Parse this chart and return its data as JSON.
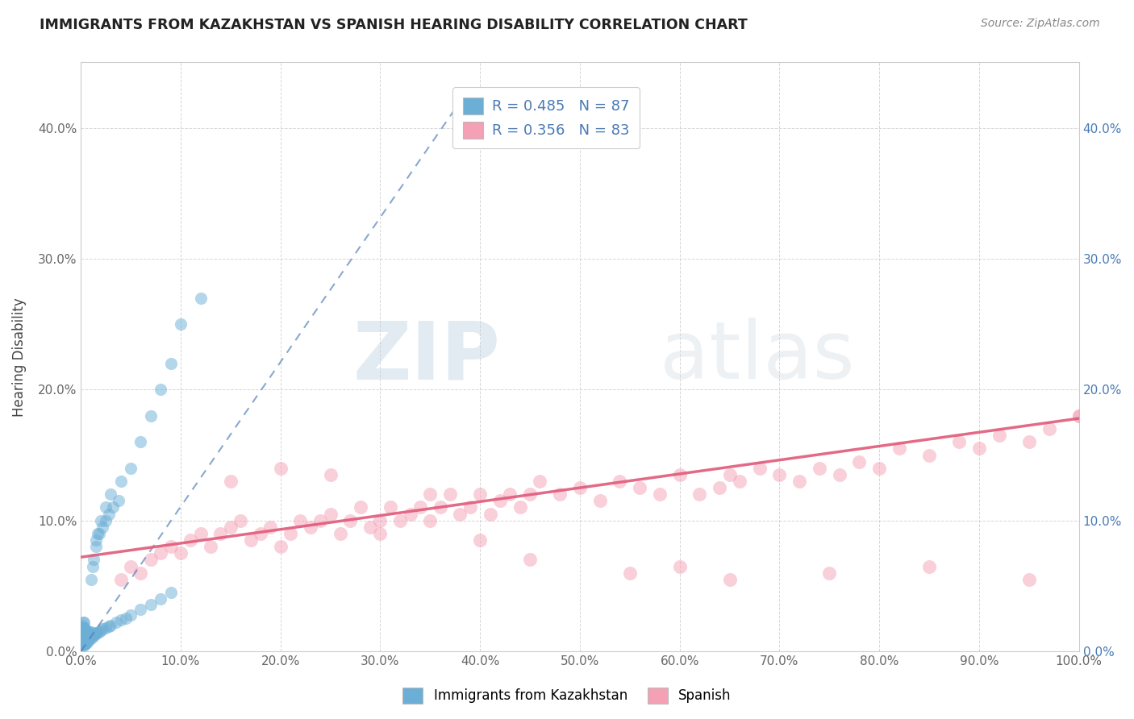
{
  "title": "IMMIGRANTS FROM KAZAKHSTAN VS SPANISH HEARING DISABILITY CORRELATION CHART",
  "source": "Source: ZipAtlas.com",
  "ylabel": "Hearing Disability",
  "xlabel": "",
  "legend_label_1": "Immigrants from Kazakhstan",
  "legend_label_2": "Spanish",
  "r1": 0.485,
  "n1": 87,
  "r2": 0.356,
  "n2": 83,
  "color1": "#6baed6",
  "color2": "#f4a0b5",
  "trendline1_color": "#4a7ab5",
  "trendline2_color": "#e05a7a",
  "xlim": [
    0.0,
    1.0
  ],
  "ylim": [
    0.0,
    0.45
  ],
  "xticks": [
    0.0,
    0.1,
    0.2,
    0.3,
    0.4,
    0.5,
    0.6,
    0.7,
    0.8,
    0.9,
    1.0
  ],
  "yticks": [
    0.0,
    0.1,
    0.2,
    0.3,
    0.4
  ],
  "ytick_labels": [
    "0.0%",
    "10.0%",
    "20.0%",
    "30.0%",
    "40.0%"
  ],
  "xtick_labels": [
    "0.0%",
    "10.0%",
    "20.0%",
    "30.0%",
    "40.0%",
    "50.0%",
    "60.0%",
    "70.0%",
    "80.0%",
    "90.0%",
    "100.0%"
  ],
  "watermark_zip": "ZIP",
  "watermark_atlas": "atlas",
  "background_color": "#ffffff",
  "grid_color": "#cccccc",
  "kaz_trendline_x": [
    0.0,
    0.38
  ],
  "kaz_trendline_y": [
    0.0,
    0.42
  ],
  "spa_trendline_x0": 0.0,
  "spa_trendline_x1": 1.0,
  "spa_trendline_y0": 0.072,
  "spa_trendline_y1": 0.178,
  "kaz_x": [
    0.001,
    0.001,
    0.001,
    0.001,
    0.001,
    0.001,
    0.001,
    0.001,
    0.001,
    0.002,
    0.002,
    0.002,
    0.002,
    0.002,
    0.002,
    0.002,
    0.003,
    0.003,
    0.003,
    0.003,
    0.003,
    0.003,
    0.003,
    0.004,
    0.004,
    0.004,
    0.004,
    0.004,
    0.005,
    0.005,
    0.005,
    0.005,
    0.006,
    0.006,
    0.006,
    0.007,
    0.007,
    0.007,
    0.008,
    0.008,
    0.009,
    0.009,
    0.01,
    0.01,
    0.011,
    0.012,
    0.013,
    0.014,
    0.015,
    0.016,
    0.018,
    0.02,
    0.022,
    0.025,
    0.028,
    0.03,
    0.035,
    0.04,
    0.045,
    0.05,
    0.06,
    0.07,
    0.08,
    0.09,
    0.01,
    0.012,
    0.013,
    0.015,
    0.017,
    0.02,
    0.025,
    0.03,
    0.04,
    0.05,
    0.06,
    0.07,
    0.08,
    0.09,
    0.1,
    0.12,
    0.015,
    0.018,
    0.022,
    0.025,
    0.028,
    0.032,
    0.038
  ],
  "kaz_y": [
    0.005,
    0.007,
    0.008,
    0.01,
    0.012,
    0.013,
    0.015,
    0.018,
    0.02,
    0.005,
    0.007,
    0.009,
    0.012,
    0.015,
    0.018,
    0.022,
    0.005,
    0.007,
    0.009,
    0.012,
    0.015,
    0.018,
    0.022,
    0.005,
    0.008,
    0.01,
    0.014,
    0.018,
    0.006,
    0.009,
    0.012,
    0.016,
    0.007,
    0.01,
    0.014,
    0.008,
    0.011,
    0.015,
    0.009,
    0.013,
    0.01,
    0.015,
    0.01,
    0.015,
    0.012,
    0.013,
    0.012,
    0.013,
    0.014,
    0.014,
    0.015,
    0.016,
    0.017,
    0.018,
    0.019,
    0.02,
    0.022,
    0.024,
    0.025,
    0.028,
    0.032,
    0.036,
    0.04,
    0.045,
    0.055,
    0.065,
    0.07,
    0.08,
    0.09,
    0.1,
    0.11,
    0.12,
    0.13,
    0.14,
    0.16,
    0.18,
    0.2,
    0.22,
    0.25,
    0.27,
    0.085,
    0.09,
    0.095,
    0.1,
    0.105,
    0.11,
    0.115
  ],
  "spa_x": [
    0.04,
    0.05,
    0.06,
    0.07,
    0.08,
    0.09,
    0.1,
    0.11,
    0.12,
    0.13,
    0.14,
    0.15,
    0.16,
    0.17,
    0.18,
    0.19,
    0.2,
    0.21,
    0.22,
    0.23,
    0.24,
    0.25,
    0.26,
    0.27,
    0.28,
    0.29,
    0.3,
    0.31,
    0.32,
    0.33,
    0.34,
    0.35,
    0.36,
    0.37,
    0.38,
    0.39,
    0.4,
    0.41,
    0.42,
    0.43,
    0.44,
    0.45,
    0.46,
    0.48,
    0.5,
    0.52,
    0.54,
    0.56,
    0.58,
    0.6,
    0.62,
    0.64,
    0.65,
    0.66,
    0.68,
    0.7,
    0.72,
    0.74,
    0.76,
    0.78,
    0.8,
    0.82,
    0.85,
    0.88,
    0.9,
    0.92,
    0.95,
    0.97,
    1.0,
    0.15,
    0.2,
    0.25,
    0.3,
    0.35,
    0.4,
    0.45,
    0.55,
    0.6,
    0.65,
    0.75,
    0.85,
    0.95,
    1.0
  ],
  "spa_y": [
    0.055,
    0.065,
    0.06,
    0.07,
    0.075,
    0.08,
    0.075,
    0.085,
    0.09,
    0.08,
    0.09,
    0.095,
    0.1,
    0.085,
    0.09,
    0.095,
    0.08,
    0.09,
    0.1,
    0.095,
    0.1,
    0.105,
    0.09,
    0.1,
    0.11,
    0.095,
    0.1,
    0.11,
    0.1,
    0.105,
    0.11,
    0.1,
    0.11,
    0.12,
    0.105,
    0.11,
    0.12,
    0.105,
    0.115,
    0.12,
    0.11,
    0.12,
    0.13,
    0.12,
    0.125,
    0.115,
    0.13,
    0.125,
    0.12,
    0.135,
    0.12,
    0.125,
    0.135,
    0.13,
    0.14,
    0.135,
    0.13,
    0.14,
    0.135,
    0.145,
    0.14,
    0.155,
    0.15,
    0.16,
    0.155,
    0.165,
    0.16,
    0.17,
    0.18,
    0.13,
    0.14,
    0.135,
    0.09,
    0.12,
    0.085,
    0.07,
    0.06,
    0.065,
    0.055,
    0.06,
    0.065,
    0.055,
    0.18
  ]
}
